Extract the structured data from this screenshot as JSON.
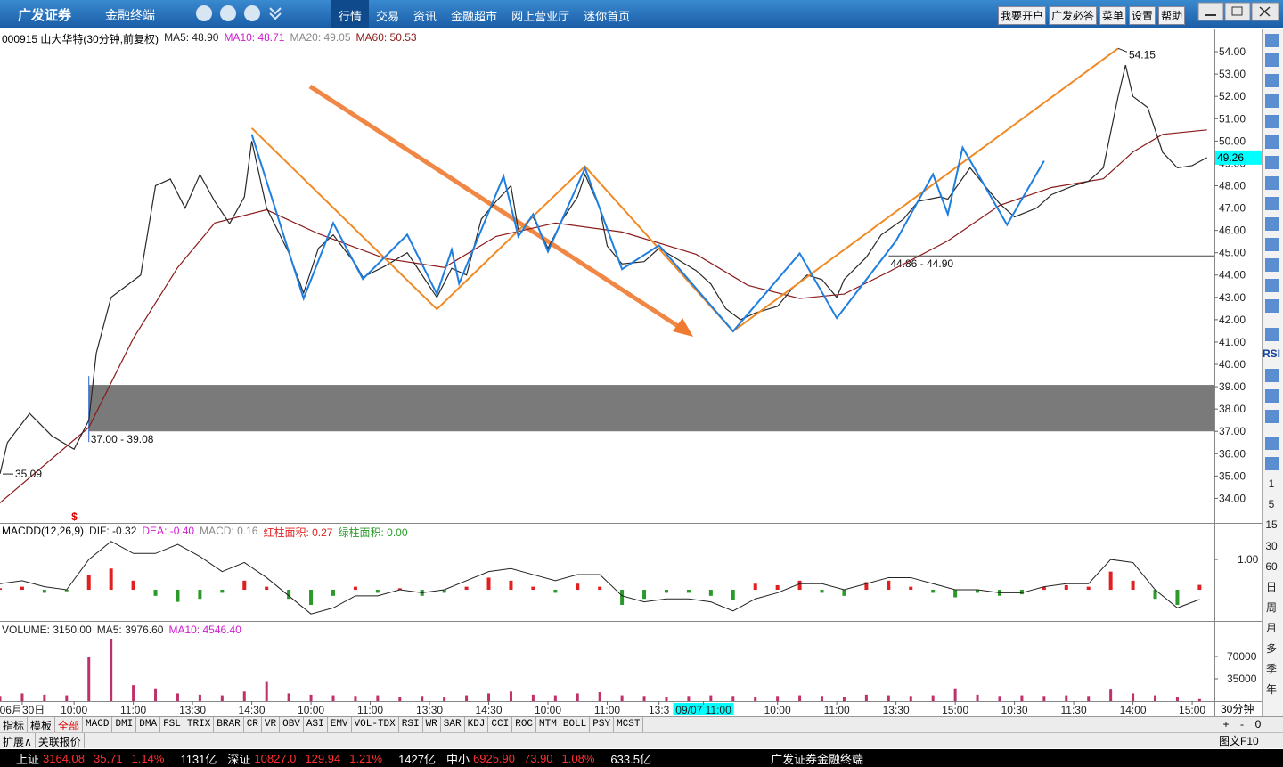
{
  "toolbar": {
    "logo": "广发证券",
    "product": "金融终端",
    "menu": [
      "行情",
      "交易",
      "资讯",
      "金融超市",
      "网上营业厅",
      "迷你首页"
    ],
    "buttons": [
      "我要开户",
      "广发必答",
      "菜单",
      "设置",
      "帮助"
    ]
  },
  "chart_data": {
    "type": "line",
    "title": "000915 山大华特(30分钟,前复权)",
    "indicators": [
      {
        "label": "MA5: 48.90",
        "color": "#222222"
      },
      {
        "label": "MA10: 48.71",
        "color": "#d01cd0"
      },
      {
        "label": "MA20: 49.05",
        "color": "#888888"
      },
      {
        "label": "MA60: 50.53",
        "color": "#8b1a1a"
      }
    ],
    "x": [
      0,
      1,
      4,
      7,
      10,
      12,
      13,
      15,
      17,
      19,
      21,
      23,
      25,
      27,
      29,
      31,
      33,
      34,
      36,
      39,
      41,
      43,
      45,
      48,
      49,
      52,
      55,
      57,
      59,
      61,
      63,
      65,
      67,
      69,
      70,
      72,
      74,
      76,
      78,
      79,
      81,
      82,
      84,
      87,
      89,
      92,
      94,
      96,
      98,
      100,
      102,
      105,
      107,
      109,
      111,
      113,
      114,
      117,
      119,
      122,
      124,
      127,
      128,
      131,
      133,
      135,
      137,
      140,
      142,
      145,
      147,
      149,
      151,
      152,
      153,
      155,
      157,
      159,
      161,
      163
    ],
    "values": [
      35.1,
      36.5,
      37.8,
      36.8,
      36.2,
      37.5,
      40.5,
      43,
      43.5,
      44,
      48,
      48.3,
      47,
      48.5,
      47.3,
      46.3,
      47.5,
      50,
      47,
      45,
      43.2,
      45.2,
      45.8,
      44.5,
      43.9,
      44.4,
      45,
      44,
      43,
      44.3,
      44,
      46.5,
      47.3,
      48,
      46,
      46.6,
      45.2,
      46.5,
      47.5,
      48.5,
      47,
      45.3,
      44.5,
      44.6,
      45.2,
      44.6,
      44.2,
      43.6,
      42.5,
      42,
      42.3,
      42.6,
      43.4,
      44,
      43.8,
      43,
      43.8,
      44.8,
      45.8,
      46.5,
      47.3,
      47.5,
      47.4,
      48.8,
      48,
      47.2,
      46.6,
      47,
      47.6,
      48,
      48.2,
      48.8,
      52,
      53.4,
      52,
      51.5,
      49.5,
      48.8,
      48.9,
      49.26
    ],
    "color": "#2a2a2a",
    "xlim": [
      0,
      164
    ],
    "ylim": [
      32.9,
      55
    ],
    "yticks": [
      {
        "value": 34,
        "label": "34.00"
      },
      {
        "value": 35,
        "label": "35.00"
      },
      {
        "value": 36,
        "label": "36.00"
      },
      {
        "value": 37,
        "label": "37.00"
      },
      {
        "value": 38,
        "label": "38.00"
      },
      {
        "value": 39,
        "label": "39.00"
      },
      {
        "value": 40,
        "label": "40.00"
      },
      {
        "value": 41,
        "label": "41.00"
      },
      {
        "value": 42,
        "label": "42.00"
      },
      {
        "value": 43,
        "label": "43.00"
      },
      {
        "value": 44,
        "label": "44.00"
      },
      {
        "value": 45,
        "label": "45.00"
      },
      {
        "value": 46,
        "label": "46.00"
      },
      {
        "value": 47,
        "label": "47.00"
      },
      {
        "value": 48,
        "label": "48.00"
      },
      {
        "value": 49,
        "label": "49.00"
      },
      {
        "value": 50,
        "label": "50.00"
      },
      {
        "value": 51,
        "label": "51.00"
      },
      {
        "value": 52,
        "label": "52.00"
      },
      {
        "value": 53,
        "label": "53.00"
      },
      {
        "value": 54,
        "label": "54.00"
      }
    ],
    "xticks": [
      {
        "value": 3,
        "label": "06月30日"
      },
      {
        "value": 10,
        "label": "10:00"
      },
      {
        "value": 18,
        "label": "11:00"
      },
      {
        "value": 26,
        "label": "13:30"
      },
      {
        "value": 34,
        "label": "14:30"
      },
      {
        "value": 42,
        "label": "10:00"
      },
      {
        "value": 50,
        "label": "11:00"
      },
      {
        "value": 58,
        "label": "13:30"
      },
      {
        "value": 66,
        "label": "14:30"
      },
      {
        "value": 74,
        "label": "10:00"
      },
      {
        "value": 82,
        "label": "11:00"
      },
      {
        "value": 89,
        "label": "13:3"
      },
      {
        "value": 95,
        "label": "09/07 11:00"
      },
      {
        "value": 105,
        "label": "10:00"
      },
      {
        "value": 113,
        "label": "11:00"
      },
      {
        "value": 121,
        "label": "13:30"
      },
      {
        "value": 129,
        "label": "15:00"
      },
      {
        "value": 137,
        "label": "10:30"
      },
      {
        "value": 145,
        "label": "11:30"
      },
      {
        "value": 153,
        "label": "14:00"
      },
      {
        "value": 161,
        "label": "15:00"
      }
    ],
    "highlight_tick": 12,
    "period": "30分钟",
    "ma60": {
      "x": [
        0,
        12,
        18,
        24,
        29,
        36,
        43,
        52,
        60,
        67,
        75,
        84,
        94,
        101,
        108,
        114,
        120,
        128,
        135,
        142,
        149,
        153,
        157,
        163
      ],
      "values": [
        33.8,
        37.18,
        41.16,
        44.34,
        46.33,
        46.92,
        45.85,
        44.74,
        44.34,
        45.73,
        46.33,
        45.93,
        44.93,
        43.54,
        42.95,
        43.15,
        44.14,
        45.53,
        47.12,
        47.92,
        48.31,
        49.51,
        50.3,
        50.5
      ],
      "color": "#8b1a1a"
    },
    "zigzag_orange": {
      "x": [
        34,
        59,
        79,
        99,
        151
      ],
      "values": [
        50.58,
        42.47,
        48.87,
        41.48,
        54.15
      ],
      "color": "#f08a24"
    },
    "zigzag_blue": {
      "x": [
        34,
        41,
        45,
        49,
        55,
        59,
        61,
        62,
        68,
        70,
        72,
        74,
        79,
        84,
        89,
        99,
        108,
        113,
        121,
        126,
        128,
        130,
        136,
        141
      ],
      "values": [
        50.3,
        42.95,
        46.33,
        43.82,
        45.81,
        43.15,
        45.13,
        43.62,
        48.43,
        45.73,
        46.72,
        45.05,
        48.79,
        44.26,
        45.33,
        41.48,
        44.97,
        42.07,
        45.53,
        48.51,
        46.72,
        49.71,
        46.25,
        49.11
      ],
      "color": "#1f7fe0"
    },
    "band": {
      "values": [
        37,
        39.08
      ],
      "label": "37.00 - 39.08",
      "start_x": 12,
      "color": "#7a7a7a"
    },
    "level": {
      "values": [
        44.86,
        44.9
      ],
      "label": "44.86 - 44.90",
      "start_x": 120
    },
    "high": {
      "x": 151,
      "value": 54.15
    },
    "low": {
      "x": 0,
      "value": 35.09
    },
    "last": {
      "value": 49.26
    },
    "marker": "$"
  },
  "macd": {
    "title": "MACDD(12,26,9)",
    "labels": [
      {
        "label": "DIF: -0.32",
        "color": "#222222"
      },
      {
        "label": "DEA: -0.40",
        "color": "#d01cd0"
      },
      {
        "label": "MACD: 0.16",
        "color": "#888888"
      },
      {
        "label": "红柱面积: 0.27",
        "color": "#e02020"
      },
      {
        "label": "绿柱面积: 0.00",
        "color": "#2a9a2a"
      }
    ],
    "x": [
      0,
      3,
      6,
      9,
      12,
      15,
      18,
      21,
      24,
      27,
      30,
      33,
      36,
      39,
      42,
      45,
      48,
      51,
      54,
      57,
      60,
      63,
      66,
      69,
      72,
      75,
      78,
      81,
      84,
      87,
      90,
      93,
      96,
      99,
      102,
      105,
      108,
      111,
      114,
      117,
      120,
      123,
      126,
      129,
      132,
      135,
      138,
      141,
      144,
      147,
      150,
      153,
      156,
      159,
      162
    ],
    "values": [
      0.05,
      0.1,
      -0.1,
      -0.05,
      0.5,
      0.7,
      0.3,
      -0.2,
      -0.4,
      -0.3,
      -0.1,
      0.3,
      0.1,
      -0.3,
      -0.5,
      -0.2,
      0.1,
      -0.1,
      0.05,
      -0.2,
      -0.1,
      0.1,
      0.4,
      0.3,
      0.1,
      -0.1,
      0.2,
      0.1,
      -0.5,
      -0.3,
      -0.1,
      -0.1,
      -0.2,
      -0.35,
      0.2,
      0.15,
      0.3,
      -0.1,
      -0.2,
      0.25,
      0.3,
      0.1,
      -0.1,
      -0.25,
      -0.1,
      -0.2,
      -0.15,
      0.1,
      0.15,
      0.1,
      0.6,
      0.3,
      -0.3,
      -0.5,
      0.16
    ],
    "dif": [
      0.2,
      0.3,
      0.1,
      0,
      1,
      1.6,
      1.2,
      1.2,
      1.5,
      1.1,
      0.6,
      0.9,
      0.4,
      -0.2,
      -0.8,
      -0.6,
      -0.2,
      -0.2,
      0,
      -0.1,
      0,
      0.3,
      0.6,
      0.7,
      0.5,
      0.3,
      0.5,
      0.5,
      -0.2,
      -0.4,
      -0.3,
      -0.3,
      -0.4,
      -0.7,
      -0.3,
      -0.1,
      0.2,
      0.2,
      0,
      0.2,
      0.4,
      0.4,
      0.2,
      0,
      0,
      -0.1,
      -0.1,
      0.1,
      0.2,
      0.2,
      1,
      0.9,
      0,
      -0.6,
      -0.32
    ],
    "ylim": [
      -1.03,
      2.18
    ],
    "yticks": [
      {
        "value": 1,
        "label": "1.00"
      }
    ],
    "up_color": "#e02020",
    "down_color": "#2a9a2a"
  },
  "volume": {
    "labels": [
      {
        "label": "VOLUME: 3150.00",
        "color": "#222222"
      },
      {
        "label": "MA5: 3976.60",
        "color": "#222222"
      },
      {
        "label": "MA10: 4546.40",
        "color": "#d01cd0"
      }
    ],
    "x": [
      0,
      3,
      6,
      9,
      12,
      15,
      18,
      21,
      24,
      27,
      30,
      33,
      36,
      39,
      42,
      45,
      48,
      51,
      54,
      57,
      60,
      63,
      66,
      69,
      72,
      75,
      78,
      81,
      84,
      87,
      90,
      93,
      96,
      99,
      102,
      105,
      108,
      111,
      114,
      117,
      120,
      123,
      126,
      129,
      132,
      135,
      138,
      141,
      144,
      147,
      150,
      153,
      156,
      159,
      162
    ],
    "values": [
      8000,
      12000,
      10000,
      9000,
      70000,
      98000,
      25000,
      20000,
      12000,
      10000,
      9000,
      15000,
      30000,
      12000,
      10000,
      9000,
      8000,
      9000,
      7000,
      8000,
      7000,
      9000,
      12000,
      15000,
      10000,
      9000,
      12000,
      14000,
      9000,
      8000,
      7000,
      8000,
      9000,
      8000,
      7000,
      8000,
      9000,
      8000,
      7000,
      10000,
      9000,
      8000,
      9000,
      20000,
      10000,
      8000,
      9000,
      8000,
      9000,
      8000,
      18000,
      12000,
      9000,
      7000,
      3150
    ],
    "ylim": [
      0,
      124600
    ],
    "yticks": [
      35000,
      70000
    ],
    "color": "#c0306a"
  },
  "tabs": {
    "items": [
      "指标",
      "模板",
      "全部",
      "MACD",
      "DMI",
      "DMA",
      "FSL",
      "TRIX",
      "BRAR",
      "CR",
      "VR",
      "OBV",
      "ASI",
      "EMV",
      "VOL-TDX",
      "RSI",
      "WR",
      "SAR",
      "KDJ",
      "CCI",
      "ROC",
      "MTM",
      "BOLL",
      "PSY",
      "MCST"
    ],
    "active": 2,
    "row2": [
      "扩展∧",
      "关联报价"
    ],
    "controls": [
      "+",
      "-",
      "0"
    ],
    "f10": "图文F10"
  },
  "side": [
    "RSI",
    "1",
    "5",
    "15",
    "30",
    "60",
    "日",
    "周",
    "月",
    "多",
    "季",
    "年"
  ],
  "status": {
    "indices": [
      {
        "name": "上证",
        "value": "3164.08",
        "change": "35.71",
        "pct": "1.14%",
        "amount": "1131亿"
      },
      {
        "name": "深证",
        "value": "10827.0",
        "change": "129.94",
        "pct": "1.21%",
        "amount": "1427亿"
      },
      {
        "name": "中小",
        "value": "6925.90",
        "change": "73.90",
        "pct": "1.08%",
        "amount": "633.5亿"
      }
    ],
    "brand": "广发证券金融终端"
  }
}
